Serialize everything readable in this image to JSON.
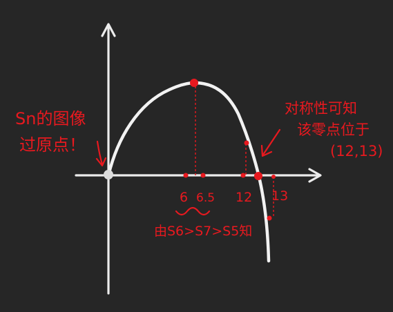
{
  "annotations": {
    "origin_note_line1": "Sn的图像",
    "origin_note_line2": "过原点！",
    "symmetry_note_line1": "对称性可知",
    "symmetry_note_line2": "该零点位于",
    "symmetry_note_line3": "(12,13)",
    "bottom_note": "由S6>S7>S5知"
  },
  "x_tick_labels": [
    "6",
    "6.5",
    "12",
    "13"
  ],
  "colors": {
    "background": "#262626",
    "axis": "#ececec",
    "annotation": "#e8191f"
  }
}
